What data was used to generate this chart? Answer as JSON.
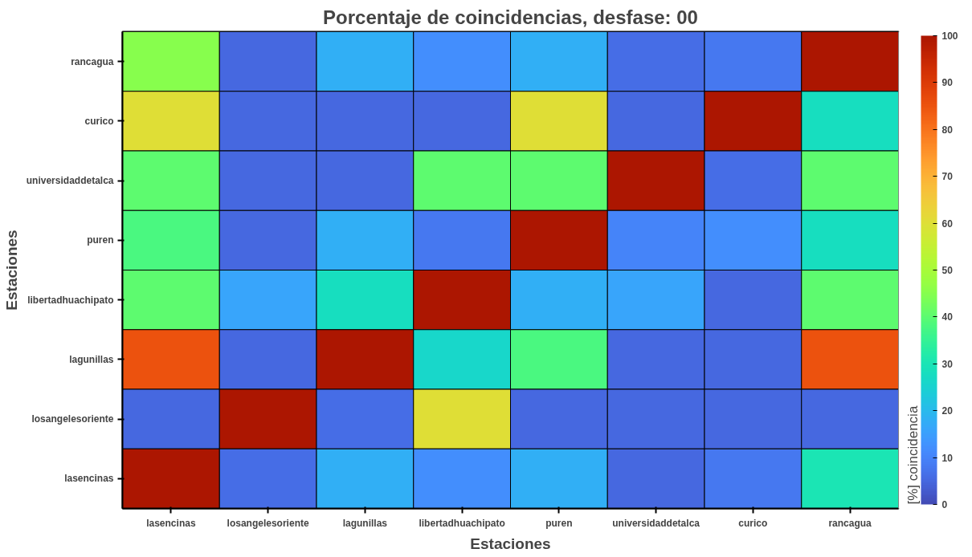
{
  "chart_data": {
    "type": "heatmap",
    "title": "Porcentaje de coincidencias, desfase: 00",
    "xlabel": "Estaciones",
    "ylabel": "Estaciones",
    "clabel": "[%] coincidencia",
    "categories": [
      "lasencinas",
      "losangelesoriente",
      "lagunillas",
      "libertadhuachipato",
      "puren",
      "universidaddetalca",
      "curico",
      "rancagua"
    ],
    "y_categories": [
      "rancagua",
      "curico",
      "universidaddetalca",
      "puren",
      "libertadhuachipato",
      "lagunillas",
      "losangelesoriente",
      "lasencinas"
    ],
    "cells": [
      [
        45,
        5,
        18,
        12,
        18,
        6,
        8,
        100
      ],
      [
        60,
        5,
        5,
        5,
        60,
        5,
        100,
        28
      ],
      [
        40,
        5,
        5,
        40,
        40,
        100,
        6,
        40
      ],
      [
        38,
        5,
        18,
        8,
        100,
        10,
        12,
        28
      ],
      [
        40,
        16,
        28,
        100,
        18,
        16,
        5,
        40
      ],
      [
        85,
        5,
        100,
        26,
        38,
        5,
        5,
        85
      ],
      [
        5,
        100,
        6,
        60,
        5,
        5,
        5,
        5
      ],
      [
        100,
        6,
        18,
        12,
        18,
        5,
        8,
        30
      ]
    ],
    "clim": [
      0,
      100
    ],
    "cticks": [
      0,
      10,
      20,
      30,
      40,
      50,
      60,
      70,
      80,
      90,
      100
    ],
    "grid": false
  }
}
